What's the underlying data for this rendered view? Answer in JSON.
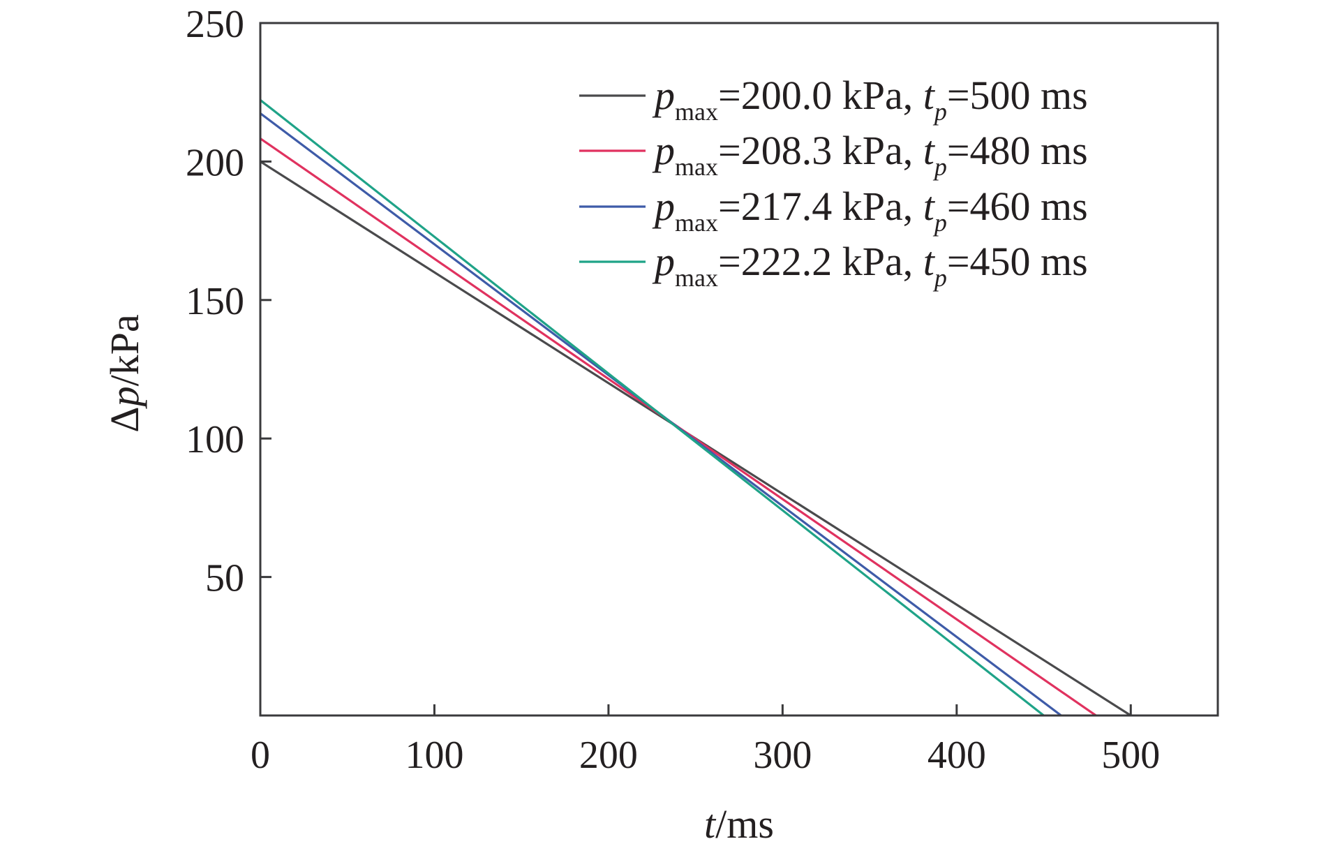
{
  "chart_data": {
    "type": "line",
    "xlabel": {
      "var": "t",
      "unit": "/ms"
    },
    "ylabel": {
      "prefix": "Δ",
      "var": "p",
      "unit": "/kPa"
    },
    "xlim": [
      0,
      550
    ],
    "ylim": [
      0,
      250
    ],
    "xticks": [
      0,
      100,
      200,
      300,
      400,
      500
    ],
    "yticks": [
      50,
      100,
      150,
      200,
      250
    ],
    "grid": false,
    "legend_position": "top-right",
    "series": [
      {
        "pmax": "200.0",
        "tp": "500",
        "color": "#4a4a4c",
        "points": [
          [
            0,
            200.0
          ],
          [
            500,
            0
          ]
        ]
      },
      {
        "pmax": "208.3",
        "tp": "480",
        "color": "#e0325f",
        "points": [
          [
            0,
            208.3
          ],
          [
            480,
            0
          ]
        ]
      },
      {
        "pmax": "217.4",
        "tp": "460",
        "color": "#3e5ba8",
        "points": [
          [
            0,
            217.4
          ],
          [
            460,
            0
          ]
        ]
      },
      {
        "pmax": "222.2",
        "tp": "450",
        "color": "#1fa388",
        "points": [
          [
            0,
            222.2
          ],
          [
            450,
            0
          ]
        ]
      }
    ],
    "legend_template": {
      "p": "p",
      "sub_max": "max",
      "eq1": "=",
      "kpa": " kPa, ",
      "t": "t",
      "sub_p": "p",
      "eq2": "=",
      "ms": " ms"
    }
  }
}
